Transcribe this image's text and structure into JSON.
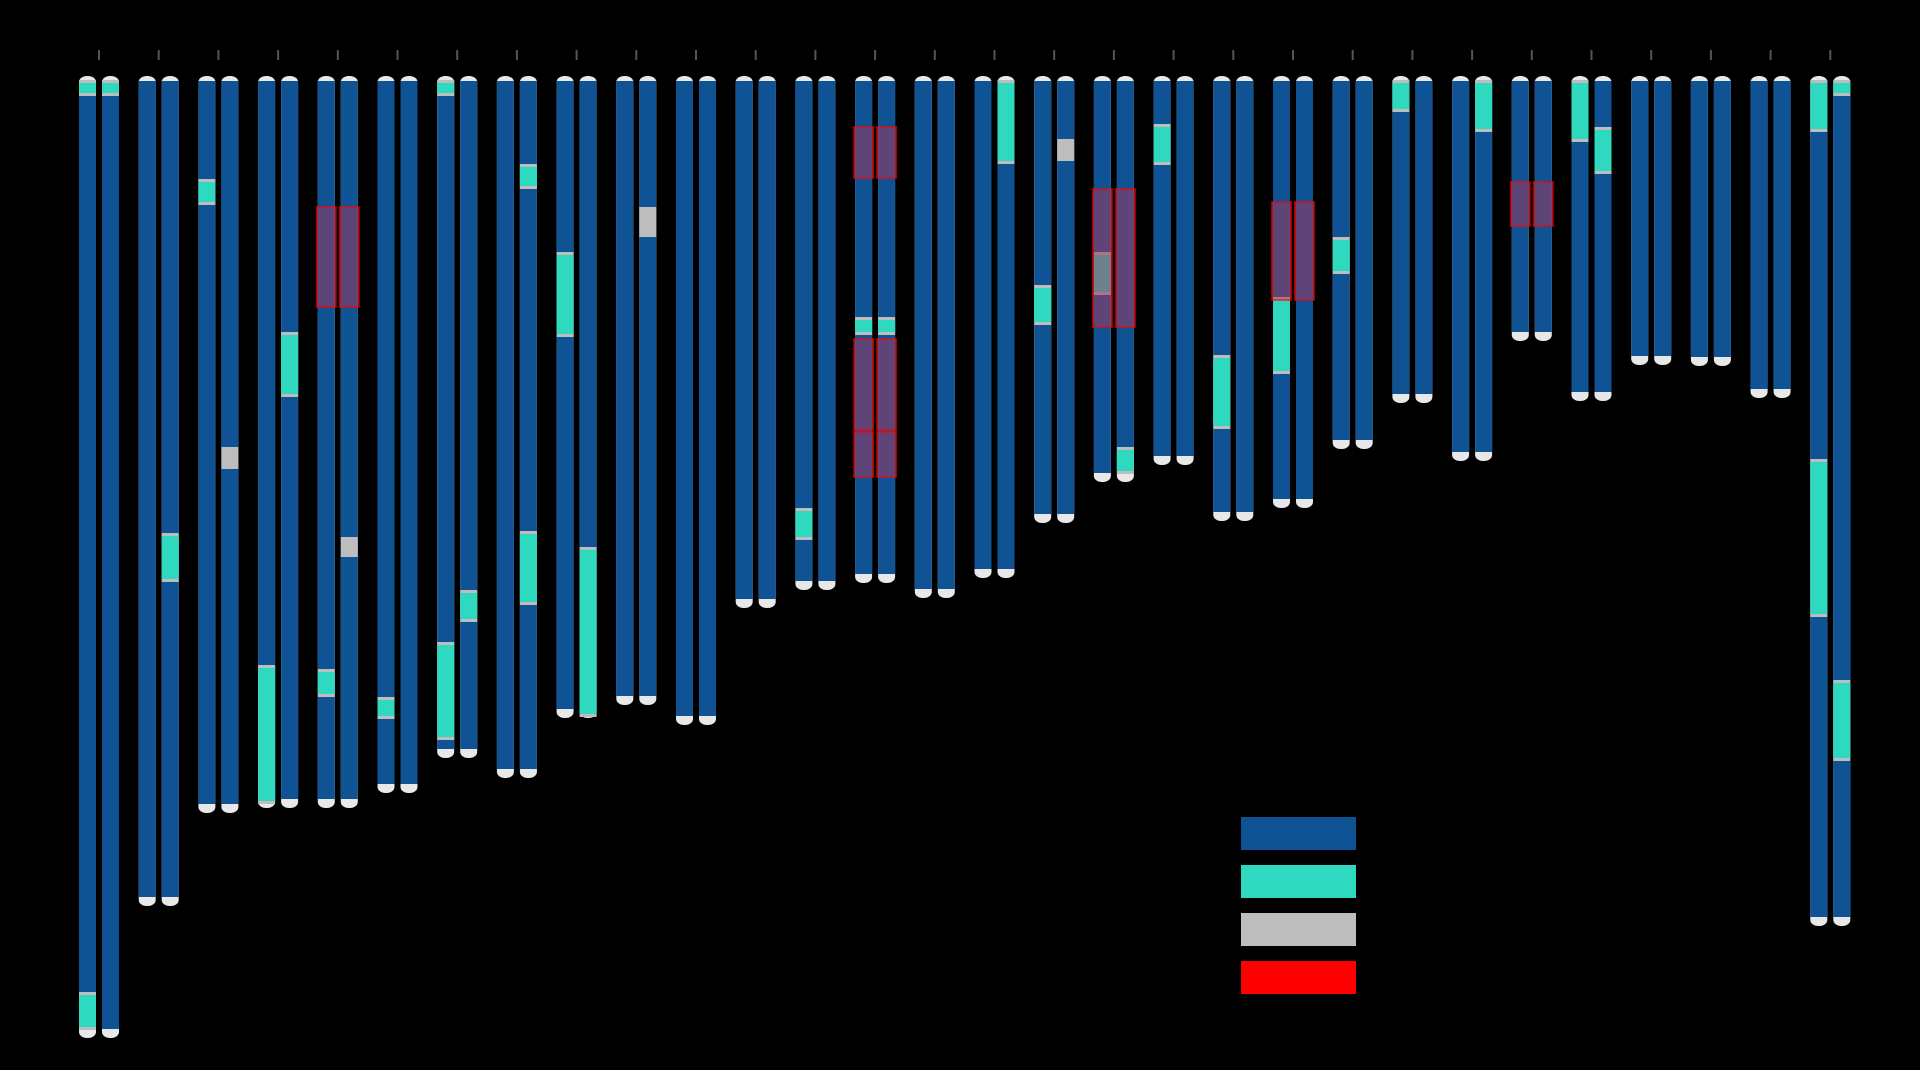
{
  "chart_data": {
    "type": "ideogram",
    "title": "",
    "xlabel": "",
    "ylabel": "",
    "legend_position": "bottom-center",
    "grid": false,
    "colors": {
      "background": "#000000",
      "base": "#0f5394",
      "band": "#2ed9c0",
      "gap": "#bdbdbd",
      "highlight": "#ff0000",
      "highlight_box_fill": "#a33a5e",
      "cap": "#e8e8e8",
      "tick": "#555555"
    },
    "legend": [
      {
        "color": "#0f5394",
        "label": ""
      },
      {
        "color": "#2ed9c0",
        "label": ""
      },
      {
        "color": "#bdbdbd",
        "label": ""
      },
      {
        "color": "#ff0000",
        "label": ""
      }
    ],
    "pairs": [
      {
        "length": 960,
        "left": [
          {
            "t": "band",
            "s": 3,
            "e": 19
          },
          {
            "t": "band",
            "s": 915,
            "e": 953
          }
        ],
        "right": [
          {
            "t": "band",
            "s": 3,
            "e": 19
          }
        ],
        "highlights": []
      },
      {
        "length": 828,
        "left": [],
        "right": [
          {
            "t": "band",
            "s": 456,
            "e": 505
          }
        ],
        "highlights": []
      },
      {
        "length": 735,
        "left": [
          {
            "t": "band",
            "s": 102,
            "e": 128
          }
        ],
        "right": [
          {
            "t": "gap",
            "s": 370,
            "e": 392
          }
        ],
        "highlights": []
      },
      {
        "length": 730,
        "left": [
          {
            "t": "band",
            "s": 588,
            "e": 727
          }
        ],
        "right": [
          {
            "t": "band",
            "s": 255,
            "e": 320
          }
        ],
        "highlights": []
      },
      {
        "length": 730,
        "left": [
          {
            "t": "band",
            "s": 592,
            "e": 620
          }
        ],
        "right": [
          {
            "t": "gap",
            "s": 460,
            "e": 480
          }
        ],
        "highlights": [
          {
            "s": 130,
            "e": 230
          }
        ]
      },
      {
        "length": 715,
        "left": [
          {
            "t": "band",
            "s": 620,
            "e": 642
          }
        ],
        "right": [],
        "highlights": []
      },
      {
        "length": 680,
        "left": [
          {
            "t": "band",
            "s": 3,
            "e": 19
          },
          {
            "t": "band",
            "s": 565,
            "e": 663
          }
        ],
        "right": [
          {
            "t": "band",
            "s": 513,
            "e": 545
          }
        ],
        "highlights": []
      },
      {
        "length": 700,
        "left": [],
        "right": [
          {
            "t": "band",
            "s": 87,
            "e": 112
          },
          {
            "t": "band",
            "s": 454,
            "e": 528
          }
        ],
        "highlights": []
      },
      {
        "length": 640,
        "left": [
          {
            "t": "band",
            "s": 175,
            "e": 260
          }
        ],
        "right": [
          {
            "t": "band",
            "s": 470,
            "e": 640
          }
        ],
        "highlights": []
      },
      {
        "length": 627,
        "left": [],
        "right": [
          {
            "t": "gap",
            "s": 130,
            "e": 160
          }
        ],
        "highlights": []
      },
      {
        "length": 647,
        "left": [],
        "right": [],
        "highlights": []
      },
      {
        "length": 530,
        "left": [],
        "right": [],
        "highlights": []
      },
      {
        "length": 512,
        "left": [
          {
            "t": "band",
            "s": 431,
            "e": 463
          }
        ],
        "right": [],
        "highlights": []
      },
      {
        "length": 505,
        "left": [
          {
            "t": "band",
            "s": 240,
            "e": 258
          }
        ],
        "right": [
          {
            "t": "band",
            "s": 240,
            "e": 258
          }
        ],
        "highlights": [
          {
            "s": 50,
            "e": 101
          },
          {
            "s": 262,
            "e": 353
          },
          {
            "s": 355,
            "e": 400
          }
        ]
      },
      {
        "length": 520,
        "left": [],
        "right": [],
        "highlights": []
      },
      {
        "length": 500,
        "left": [],
        "right": [
          {
            "t": "band",
            "s": 3,
            "e": 87
          }
        ],
        "highlights": []
      },
      {
        "length": 445,
        "left": [
          {
            "t": "band",
            "s": 208,
            "e": 248
          }
        ],
        "right": [
          {
            "t": "gap",
            "s": 62,
            "e": 84
          }
        ],
        "highlights": []
      },
      {
        "length": 404,
        "left": [
          {
            "t": "band",
            "s": 175,
            "e": 218
          }
        ],
        "right": [
          {
            "t": "band",
            "s": 370,
            "e": 397
          }
        ],
        "highlights": [
          {
            "s": 112,
            "e": 250
          }
        ]
      },
      {
        "length": 387,
        "left": [
          {
            "t": "band",
            "s": 47,
            "e": 88
          }
        ],
        "right": [],
        "highlights": []
      },
      {
        "length": 443,
        "left": [
          {
            "t": "band",
            "s": 278,
            "e": 352
          }
        ],
        "right": [],
        "highlights": []
      },
      {
        "length": 430,
        "left": [
          {
            "t": "band",
            "s": 220,
            "e": 297
          }
        ],
        "right": [],
        "highlights": [
          {
            "s": 125,
            "e": 223
          }
        ]
      },
      {
        "length": 371,
        "left": [
          {
            "t": "band",
            "s": 160,
            "e": 197
          }
        ],
        "right": [],
        "highlights": []
      },
      {
        "length": 325,
        "left": [
          {
            "t": "band",
            "s": 3,
            "e": 35
          }
        ],
        "right": [],
        "highlights": []
      },
      {
        "length": 383,
        "left": [],
        "right": [
          {
            "t": "band",
            "s": 3,
            "e": 55
          }
        ],
        "highlights": []
      },
      {
        "length": 263,
        "left": [],
        "right": [],
        "highlights": [
          {
            "s": 105,
            "e": 149
          }
        ]
      },
      {
        "length": 323,
        "left": [
          {
            "t": "band",
            "s": 3,
            "e": 65
          }
        ],
        "right": [
          {
            "t": "band",
            "s": 50,
            "e": 97
          }
        ],
        "highlights": []
      },
      {
        "length": 287,
        "left": [],
        "right": [],
        "highlights": []
      },
      {
        "length": 288,
        "left": [],
        "right": [],
        "highlights": []
      },
      {
        "length": 320,
        "left": [],
        "right": [],
        "highlights": []
      },
      {
        "length": 848,
        "left": [
          {
            "t": "band",
            "s": 3,
            "e": 55
          },
          {
            "t": "band",
            "s": 382,
            "e": 540
          }
        ],
        "right": [
          {
            "t": "band",
            "s": 3,
            "e": 19
          },
          {
            "t": "band",
            "s": 603,
            "e": 684
          }
        ],
        "highlights": []
      }
    ]
  }
}
